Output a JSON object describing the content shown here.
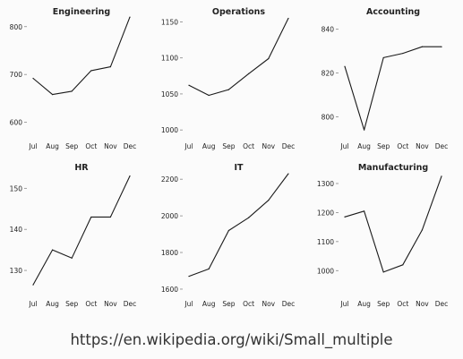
{
  "caption": "https://en.wikipedia.org/wiki/Small_multiple",
  "colors": {
    "line": "#1a1a1a",
    "axis": "#888888",
    "text": "#222222"
  },
  "chart_data": [
    {
      "type": "line",
      "title": "Engineering",
      "categories": [
        "Jul",
        "Aug",
        "Sep",
        "Oct",
        "Nov",
        "Dec"
      ],
      "values": [
        692,
        658,
        665,
        708,
        716,
        820
      ],
      "yticks": [
        600,
        700,
        800
      ],
      "ylim": [
        575,
        822
      ],
      "xlabel": "",
      "ylabel": ""
    },
    {
      "type": "line",
      "title": "Operations",
      "categories": [
        "Jul",
        "Aug",
        "Sep",
        "Oct",
        "Nov",
        "Dec"
      ],
      "values": [
        1062,
        1048,
        1056,
        1078,
        1099,
        1155
      ],
      "yticks": [
        1000,
        1050,
        1100,
        1150
      ],
      "ylim": [
        994,
        1158
      ],
      "xlabel": "",
      "ylabel": ""
    },
    {
      "type": "line",
      "title": "Accounting",
      "categories": [
        "Jul",
        "Aug",
        "Sep",
        "Oct",
        "Nov",
        "Dec"
      ],
      "values": [
        823,
        794,
        827,
        829,
        832,
        832
      ],
      "yticks": [
        800,
        820,
        840
      ],
      "ylim": [
        792,
        846
      ],
      "xlabel": "",
      "ylabel": ""
    },
    {
      "type": "line",
      "title": "HR",
      "categories": [
        "Jul",
        "Aug",
        "Sep",
        "Oct",
        "Nov",
        "Dec"
      ],
      "values": [
        126.5,
        135,
        133,
        143,
        143,
        153
      ],
      "yticks": [
        130,
        140,
        150
      ],
      "ylim": [
        125,
        154
      ],
      "xlabel": "",
      "ylabel": ""
    },
    {
      "type": "line",
      "title": "IT",
      "categories": [
        "Jul",
        "Aug",
        "Sep",
        "Oct",
        "Nov",
        "Dec"
      ],
      "values": [
        1670,
        1710,
        1920,
        1990,
        2085,
        2230
      ],
      "yticks": [
        1600,
        1800,
        2000,
        2200
      ],
      "ylim": [
        1590,
        2240
      ],
      "xlabel": "",
      "ylabel": ""
    },
    {
      "type": "line",
      "title": "Manufacturing",
      "categories": [
        "Jul",
        "Aug",
        "Sep",
        "Oct",
        "Nov",
        "Dec"
      ],
      "values": [
        1185,
        1205,
        995,
        1020,
        1140,
        1325
      ],
      "yticks": [
        1000,
        1100,
        1200,
        1300
      ],
      "ylim": [
        930,
        1340
      ],
      "xlabel": "",
      "ylabel": ""
    }
  ]
}
